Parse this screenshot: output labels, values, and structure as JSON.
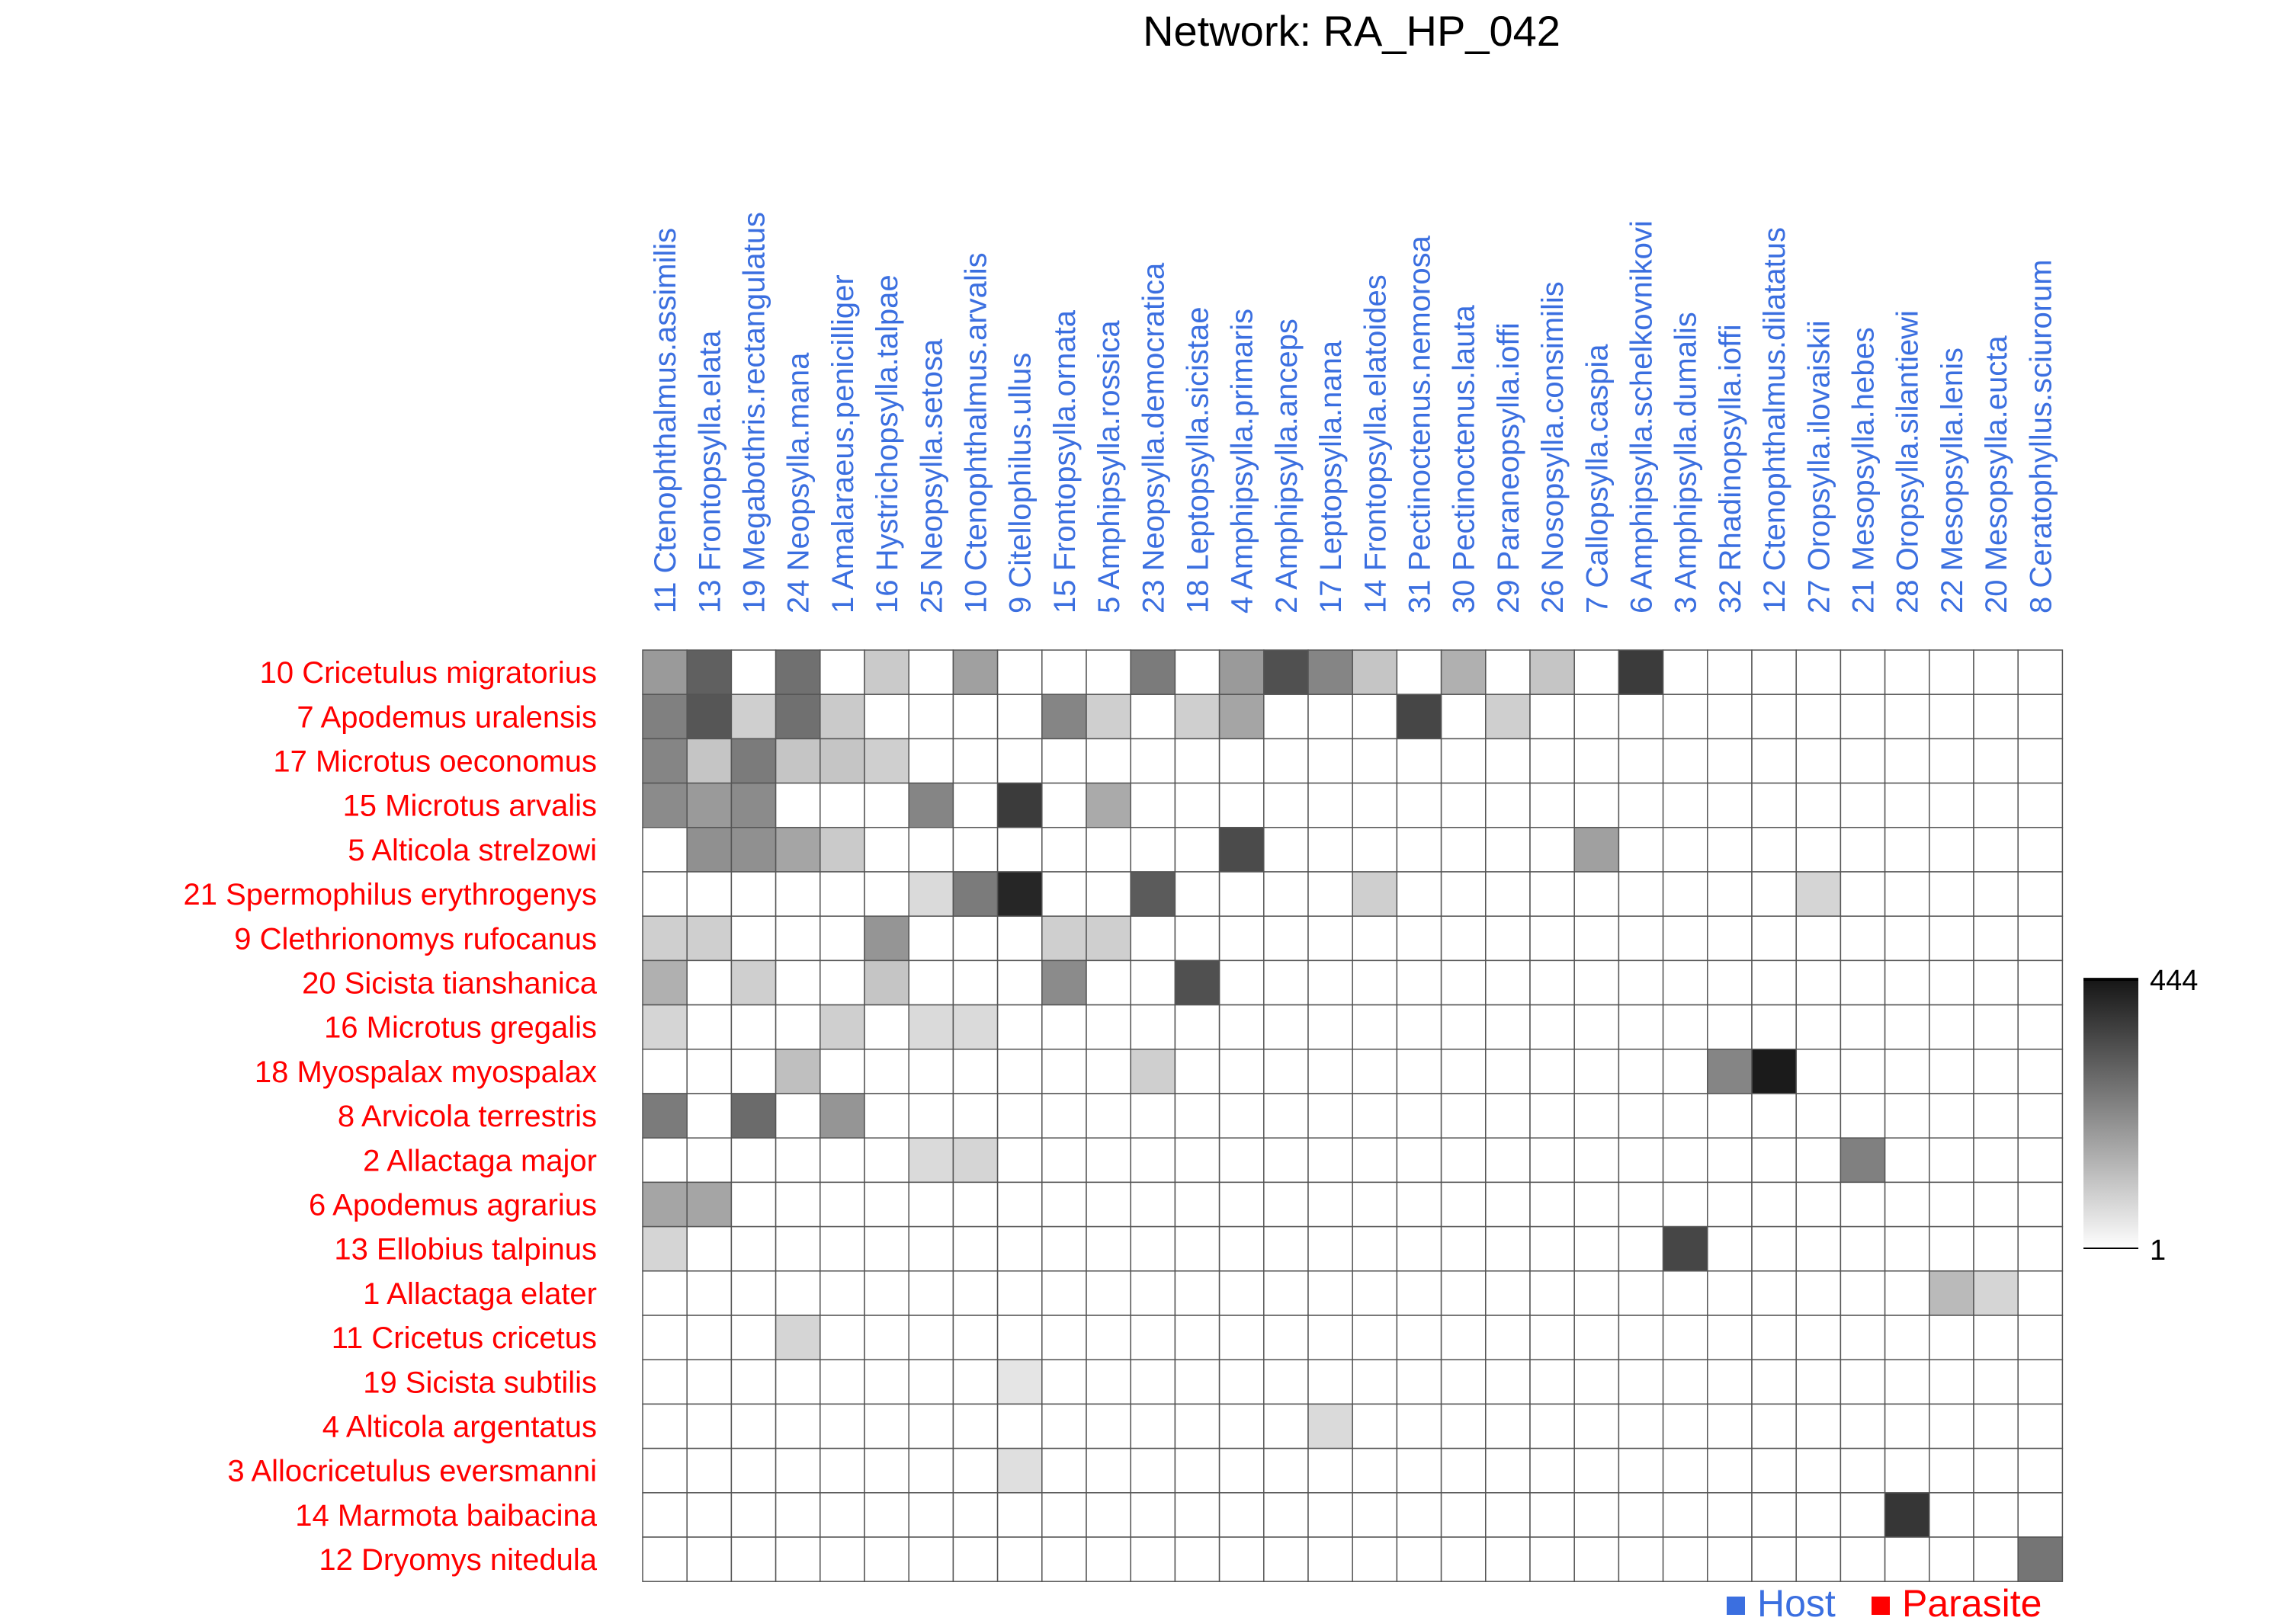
{
  "chart_data": {
    "type": "heatmap",
    "title": "Network: RA_HP_042",
    "columns": [
      "11 Ctenophthalmus.assimilis",
      "13 Frontopsylla.elata",
      "19 Megabothris.rectangulatus",
      "24 Neopsylla.mana",
      "1 Amalaraeus.penicilliger",
      "16 Hystrichopsylla.talpae",
      "25 Neopsylla.setosa",
      "10 Ctenophthalmus.arvalis",
      "9 Citellophilus.ullus",
      "15 Frontopsylla.ornata",
      "5 Amphipsylla.rossica",
      "23 Neopsylla.democratica",
      "18 Leptopsylla.sicistae",
      "4 Amphipsylla.primaris",
      "2 Amphipsylla.anceps",
      "17 Leptopsylla.nana",
      "14 Frontopsylla.elatoides",
      "31 Pectinoctenus.nemorosa",
      "30 Pectinoctenus.lauta",
      "29 Paraneopsylla.ioffi",
      "26 Nosopsylla.consimilis",
      "7 Callopsylla.caspia",
      "6 Amphipsylla.schelkovnikovi",
      "3 Amphipsylla.dumalis",
      "32 Rhadinopsylla.ioffi",
      "12 Ctenophthalmus.dilatatus",
      "27 Oropsylla.ilovaiskii",
      "21 Mesopsylla.hebes",
      "28 Oropsylla.silantiewi",
      "22 Mesopsylla.lenis",
      "20 Mesopsylla.eucta",
      "8 Ceratophyllus.sciurorum"
    ],
    "rows": [
      "10 Cricetulus migratorius",
      "7 Apodemus uralensis",
      "17 Microtus oeconomus",
      "15 Microtus arvalis",
      "5 Alticola strelzowi",
      "21 Spermophilus erythrogenys",
      "9 Clethrionomys rufocanus",
      "20 Sicista tianshanica",
      "16 Microtus gregalis",
      "18 Myospalax myospalax",
      "8 Arvicola terrestris",
      "2 Allactaga major",
      "6 Apodemus agrarius",
      "13 Ellobius talpinus",
      "1 Allactaga elater",
      "11 Cricetus cricetus",
      "19 Sicista subtilis",
      "4 Alticola argentatus",
      "3 Allocricetulus eversmanni",
      "14 Marmota baibacina",
      "12 Dryomys nitedula"
    ],
    "values": [
      [
        190,
        300,
        0,
        270,
        0,
        100,
        0,
        180,
        0,
        0,
        0,
        250,
        0,
        190,
        330,
        230,
        110,
        0,
        150,
        0,
        110,
        0,
        370,
        0,
        0,
        0,
        0,
        0,
        0,
        0,
        0,
        0
      ],
      [
        240,
        320,
        90,
        270,
        100,
        0,
        0,
        0,
        0,
        230,
        90,
        0,
        90,
        170,
        0,
        0,
        0,
        350,
        0,
        90,
        0,
        0,
        0,
        0,
        0,
        0,
        0,
        0,
        0,
        0,
        0,
        0
      ],
      [
        230,
        110,
        250,
        110,
        110,
        90,
        0,
        0,
        0,
        0,
        0,
        0,
        0,
        0,
        0,
        0,
        0,
        0,
        0,
        0,
        0,
        0,
        0,
        0,
        0,
        0,
        0,
        0,
        0,
        0,
        0,
        0
      ],
      [
        220,
        190,
        220,
        0,
        0,
        0,
        230,
        0,
        370,
        0,
        160,
        0,
        0,
        0,
        0,
        0,
        0,
        0,
        0,
        0,
        0,
        0,
        0,
        0,
        0,
        0,
        0,
        0,
        0,
        0,
        0,
        0
      ],
      [
        0,
        210,
        210,
        170,
        100,
        0,
        0,
        0,
        0,
        0,
        0,
        0,
        0,
        340,
        0,
        0,
        0,
        0,
        0,
        0,
        0,
        180,
        0,
        0,
        0,
        0,
        0,
        0,
        0,
        0,
        0,
        0
      ],
      [
        0,
        0,
        0,
        0,
        0,
        0,
        70,
        250,
        410,
        0,
        0,
        310,
        0,
        0,
        0,
        0,
        90,
        0,
        0,
        0,
        0,
        0,
        0,
        0,
        0,
        0,
        80,
        0,
        0,
        0,
        0,
        0
      ],
      [
        90,
        90,
        0,
        0,
        0,
        200,
        0,
        0,
        0,
        90,
        90,
        0,
        0,
        0,
        0,
        0,
        0,
        0,
        0,
        0,
        0,
        0,
        0,
        0,
        0,
        0,
        0,
        0,
        0,
        0,
        0,
        0
      ],
      [
        150,
        0,
        90,
        0,
        0,
        110,
        0,
        0,
        0,
        220,
        0,
        0,
        330,
        0,
        0,
        0,
        0,
        0,
        0,
        0,
        0,
        0,
        0,
        0,
        0,
        0,
        0,
        0,
        0,
        0,
        0,
        0
      ],
      [
        80,
        0,
        0,
        0,
        90,
        0,
        70,
        70,
        0,
        0,
        0,
        0,
        0,
        0,
        0,
        0,
        0,
        0,
        0,
        0,
        0,
        0,
        0,
        0,
        0,
        0,
        0,
        0,
        0,
        0,
        0,
        0
      ],
      [
        0,
        0,
        0,
        120,
        0,
        0,
        0,
        0,
        0,
        0,
        0,
        90,
        0,
        0,
        0,
        0,
        0,
        0,
        0,
        0,
        0,
        0,
        0,
        0,
        230,
        430,
        0,
        0,
        0,
        0,
        0,
        0
      ],
      [
        250,
        0,
        280,
        0,
        200,
        0,
        0,
        0,
        0,
        0,
        0,
        0,
        0,
        0,
        0,
        0,
        0,
        0,
        0,
        0,
        0,
        0,
        0,
        0,
        0,
        0,
        0,
        0,
        0,
        0,
        0,
        0
      ],
      [
        0,
        0,
        0,
        0,
        0,
        0,
        70,
        80,
        0,
        0,
        0,
        0,
        0,
        0,
        0,
        0,
        0,
        0,
        0,
        0,
        0,
        0,
        0,
        0,
        0,
        0,
        0,
        240,
        0,
        0,
        0,
        0
      ],
      [
        170,
        170,
        0,
        0,
        0,
        0,
        0,
        0,
        0,
        0,
        0,
        0,
        0,
        0,
        0,
        0,
        0,
        0,
        0,
        0,
        0,
        0,
        0,
        0,
        0,
        0,
        0,
        0,
        0,
        0,
        0,
        0
      ],
      [
        80,
        0,
        0,
        0,
        0,
        0,
        0,
        0,
        0,
        0,
        0,
        0,
        0,
        0,
        0,
        0,
        0,
        0,
        0,
        0,
        0,
        0,
        0,
        350,
        0,
        0,
        0,
        0,
        0,
        0,
        0,
        0
      ],
      [
        0,
        0,
        0,
        0,
        0,
        0,
        0,
        0,
        0,
        0,
        0,
        0,
        0,
        0,
        0,
        0,
        0,
        0,
        0,
        0,
        0,
        0,
        0,
        0,
        0,
        0,
        0,
        0,
        0,
        130,
        80,
        0
      ],
      [
        0,
        0,
        0,
        80,
        0,
        0,
        0,
        0,
        0,
        0,
        0,
        0,
        0,
        0,
        0,
        0,
        0,
        0,
        0,
        0,
        0,
        0,
        0,
        0,
        0,
        0,
        0,
        0,
        0,
        0,
        0,
        0
      ],
      [
        0,
        0,
        0,
        0,
        0,
        0,
        0,
        0,
        50,
        0,
        0,
        0,
        0,
        0,
        0,
        0,
        0,
        0,
        0,
        0,
        0,
        0,
        0,
        0,
        0,
        0,
        0,
        0,
        0,
        0,
        0,
        0
      ],
      [
        0,
        0,
        0,
        0,
        0,
        0,
        0,
        0,
        0,
        0,
        0,
        0,
        0,
        0,
        0,
        70,
        0,
        0,
        0,
        0,
        0,
        0,
        0,
        0,
        0,
        0,
        0,
        0,
        0,
        0,
        0,
        0
      ],
      [
        0,
        0,
        0,
        0,
        0,
        0,
        0,
        0,
        60,
        0,
        0,
        0,
        0,
        0,
        0,
        0,
        0,
        0,
        0,
        0,
        0,
        0,
        0,
        0,
        0,
        0,
        0,
        0,
        0,
        0,
        0,
        0
      ],
      [
        0,
        0,
        0,
        0,
        0,
        0,
        0,
        0,
        0,
        0,
        0,
        0,
        0,
        0,
        0,
        0,
        0,
        0,
        0,
        0,
        0,
        0,
        0,
        0,
        0,
        0,
        0,
        0,
        380,
        0,
        0,
        0
      ],
      [
        0,
        0,
        0,
        0,
        0,
        0,
        0,
        0,
        0,
        0,
        0,
        0,
        0,
        0,
        0,
        0,
        0,
        0,
        0,
        0,
        0,
        0,
        0,
        0,
        0,
        0,
        0,
        0,
        0,
        0,
        0,
        260
      ]
    ],
    "colorbar": {
      "min": 1,
      "max": 444,
      "min_label": "1",
      "max_label": "444"
    },
    "legend": [
      {
        "label": "Host",
        "color": "#3b6fe0"
      },
      {
        "label": "Parasite",
        "color": "#ff0000"
      }
    ],
    "legend_position": "bottom-right",
    "column_label_color": "#3b6fe0",
    "row_label_color": "#ff0000",
    "grid": true
  }
}
